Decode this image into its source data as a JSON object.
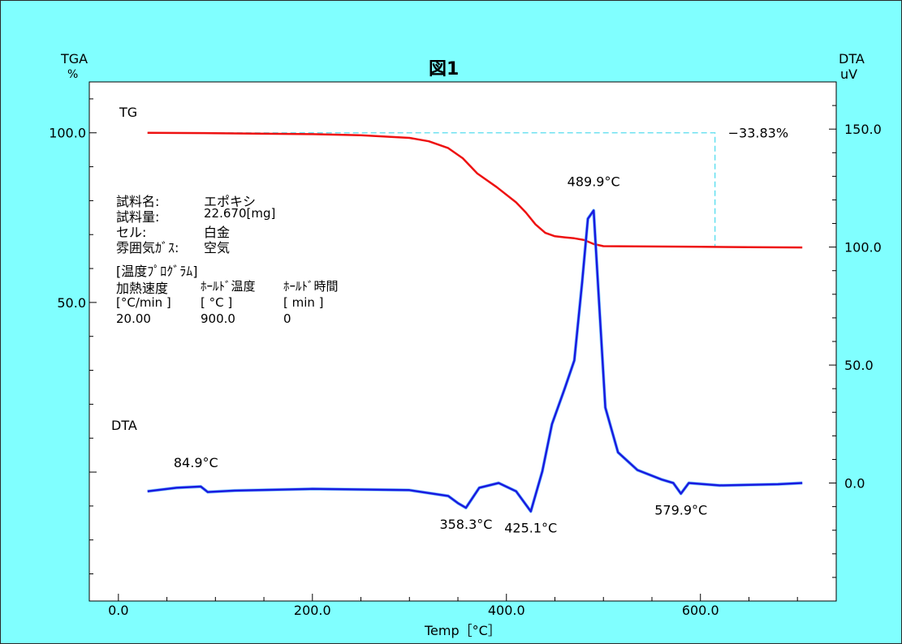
{
  "figure_title": "図1",
  "left_axis": {
    "label": "TGA",
    "unit": "%",
    "ticks": [
      "100.0",
      "50.0"
    ]
  },
  "right_axis": {
    "label": "DTA",
    "unit": "uV",
    "ticks": [
      "150.0",
      "100.0",
      "50.0",
      "0.0"
    ]
  },
  "x_axis": {
    "label": "Temp［°C］",
    "ticks": [
      "0.0",
      "200.0",
      "400.0",
      "600.0"
    ]
  },
  "curve_labels": {
    "tg": "TG",
    "dta": "DTA"
  },
  "sample_info": {
    "rows": [
      {
        "key": "試料名:",
        "value": "エポキシ"
      },
      {
        "key": "試料量:",
        "value": "22.670[mg]"
      },
      {
        "key": "セル:",
        "value": "白金"
      },
      {
        "key": "雰囲気ｶﾞｽ:",
        "value": "空気"
      }
    ],
    "program_title": "[温度ﾌﾟﾛｸﾞﾗﾑ]",
    "program_headers": [
      "加熱速度",
      "ﾎｰﾙﾄﾞ温度",
      "ﾎｰﾙﾄﾞ時間"
    ],
    "program_units": [
      "[°C/min ]",
      "[ °C ]",
      "[ min ]"
    ],
    "program_values": [
      "20.00",
      "900.0",
      "0"
    ]
  },
  "colors": {
    "tg": "#ee1111",
    "dta": "#1a1ae0",
    "dta_shadow": "#33aaff",
    "marker": "#55ddee",
    "background": "#80ffff"
  },
  "chart_data": {
    "type": "line",
    "title": "図1",
    "xlabel": "Temp［°C］",
    "xlim": [
      -30,
      740
    ],
    "y_left": {
      "label": "TGA %",
      "lim": [
        -38,
        115
      ]
    },
    "y_right": {
      "label": "DTA uV",
      "lim": [
        -50,
        170
      ]
    },
    "series": [
      {
        "name": "TG",
        "axis": "left",
        "x": [
          30,
          100,
          200,
          250,
          300,
          320,
          340,
          355,
          370,
          390,
          410,
          420,
          430,
          440,
          450,
          460,
          470,
          480,
          490,
          500,
          550,
          600,
          650,
          705
        ],
        "y": [
          100.0,
          99.9,
          99.6,
          99.3,
          98.5,
          97.5,
          95.5,
          92.5,
          88.0,
          84.0,
          79.5,
          76.5,
          73.0,
          70.5,
          69.5,
          69.2,
          68.9,
          68.4,
          67.2,
          66.6,
          66.5,
          66.4,
          66.3,
          66.2
        ]
      },
      {
        "name": "DTA",
        "axis": "right",
        "x": [
          30,
          60,
          84.9,
          92,
          120,
          200,
          300,
          340,
          350,
          358.3,
          372,
          392,
          410,
          425.1,
          437,
          447,
          460,
          470,
          478,
          484,
          489.9,
          495,
          502,
          515,
          535,
          560,
          572,
          579.9,
          588,
          620,
          680,
          705
        ],
        "y": [
          -3.5,
          -2.0,
          -1.5,
          -3.8,
          -3.2,
          -2.5,
          -3.0,
          -5.5,
          -8.5,
          -10.5,
          -2.0,
          0.0,
          -3.5,
          -12.0,
          5.0,
          25.0,
          40.0,
          52.0,
          85.0,
          112.0,
          115.5,
          80.0,
          32.0,
          13.0,
          5.5,
          1.5,
          0.0,
          -4.5,
          0.0,
          -1.0,
          -0.5,
          0.0
        ]
      }
    ],
    "annotations": {
      "mass_loss": "−33.83%",
      "peaks": [
        {
          "x": 84.9,
          "label": "84.9°C"
        },
        {
          "x": 358.3,
          "label": "358.3°C"
        },
        {
          "x": 425.1,
          "label": "425.1°C"
        },
        {
          "x": 489.9,
          "label": "489.9°C"
        },
        {
          "x": 579.9,
          "label": "579.9°C"
        }
      ]
    }
  }
}
